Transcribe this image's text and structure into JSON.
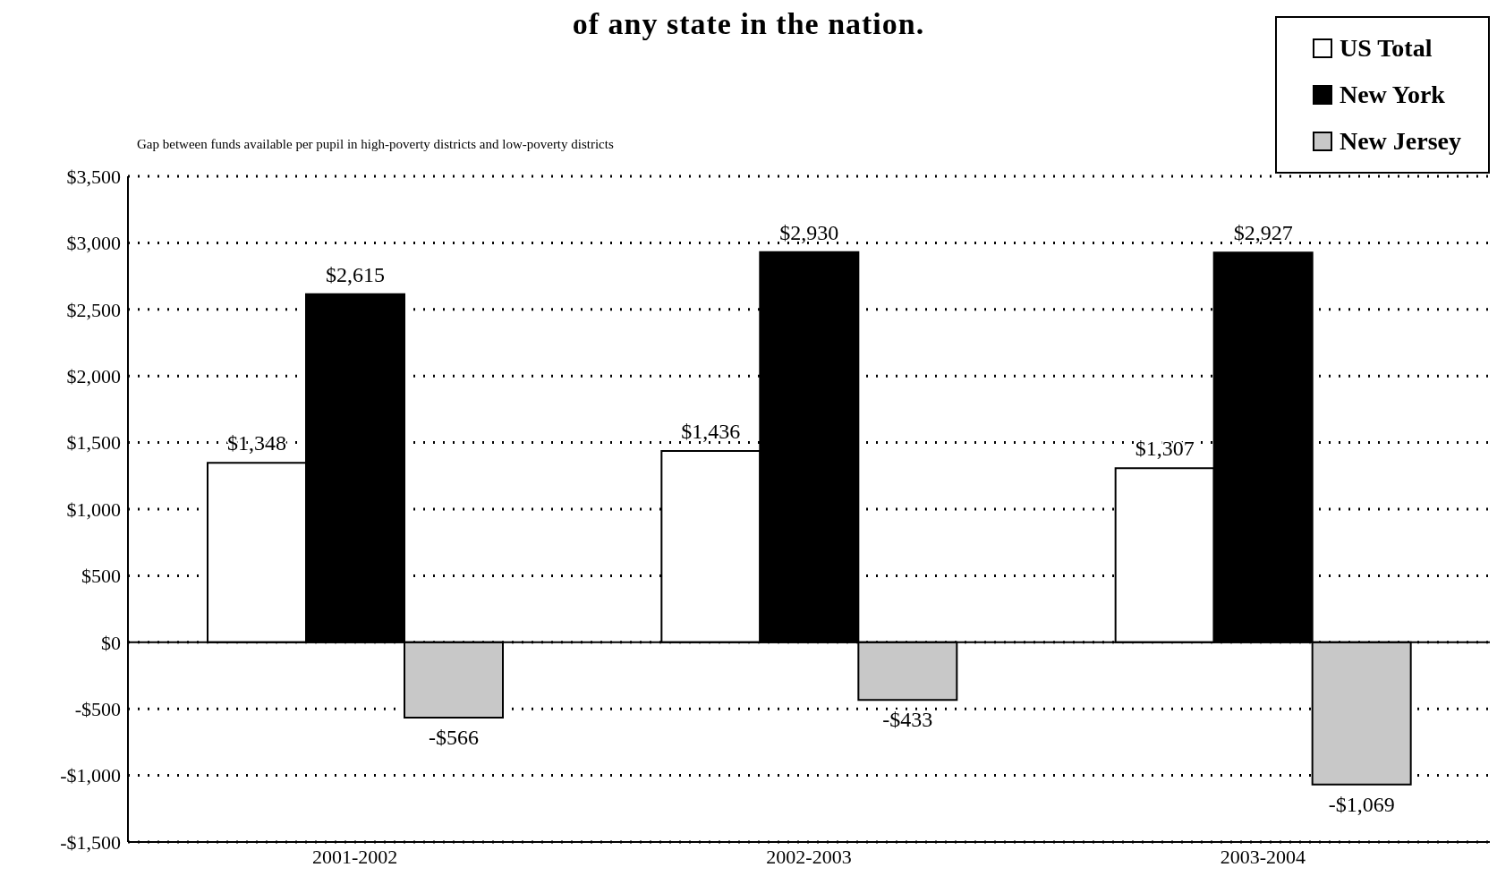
{
  "chart_data": {
    "type": "bar",
    "title": "of any state in the nation.",
    "subtitle": "Gap between funds available per pupil in high-poverty districts and low-poverty districts",
    "categories": [
      "2001-2002",
      "2002-2003",
      "2003-2004"
    ],
    "series": [
      {
        "name": "US Total",
        "color": "#ffffff",
        "values": [
          1348,
          1436,
          1307
        ],
        "value_labels": [
          "$1,348",
          "$1,436",
          "$1,307"
        ]
      },
      {
        "name": "New York",
        "color": "#000000",
        "values": [
          2615,
          2930,
          2927
        ],
        "value_labels": [
          "$2,615",
          "$2,930",
          "$2,927"
        ]
      },
      {
        "name": "New Jersey",
        "color": "#c8c8c8",
        "values": [
          -566,
          -433,
          -1069
        ],
        "value_labels": [
          "-$566",
          "-$433",
          "-$1,069"
        ]
      }
    ],
    "ylim": [
      -1500,
      3500
    ],
    "yticks": [
      {
        "value": -1500,
        "label": "-$1,500"
      },
      {
        "value": -1000,
        "label": "-$1,000"
      },
      {
        "value": -500,
        "label": "-$500"
      },
      {
        "value": 0,
        "label": "$0"
      },
      {
        "value": 500,
        "label": "$500"
      },
      {
        "value": 1000,
        "label": "$1,000"
      },
      {
        "value": 1500,
        "label": "$1,500"
      },
      {
        "value": 2000,
        "label": "$2,000"
      },
      {
        "value": 2500,
        "label": "$2,500"
      },
      {
        "value": 3000,
        "label": "$3,000"
      },
      {
        "value": 3500,
        "label": "$3,500"
      }
    ],
    "ref_lines": [
      {
        "axis": "y",
        "value": 0,
        "color": "#000000",
        "line_style": "solid"
      }
    ],
    "grid": "y",
    "legend": "top right"
  }
}
